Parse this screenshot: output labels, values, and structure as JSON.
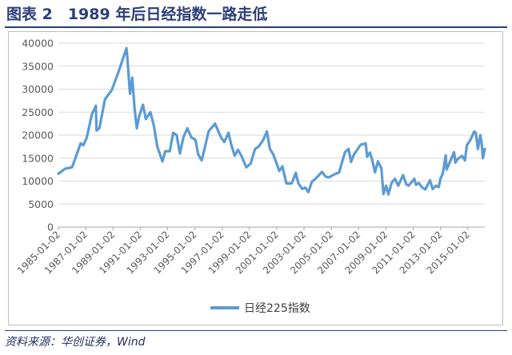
{
  "figure": {
    "title": "图表 2　1989 年后日经指数一路走低",
    "source": "资料来源：华创证券，Wind"
  },
  "colors": {
    "series": "#5b9bd5",
    "title": "#2c3e7a",
    "axis_text": "#595959",
    "grid": "#d9d9d9"
  },
  "chart_data": {
    "type": "line",
    "title": "",
    "xlabel": "",
    "ylabel": "",
    "ylim": [
      0,
      40000
    ],
    "yticks": [
      0,
      5000,
      10000,
      15000,
      20000,
      25000,
      30000,
      35000,
      40000
    ],
    "xlim": [
      "1985-01-02",
      "2016-04-01"
    ],
    "xticks": [
      "1985-01-02",
      "1987-01-02",
      "1989-01-02",
      "1991-01-02",
      "1993-01-02",
      "1995-01-02",
      "1997-01-02",
      "1999-01-02",
      "2001-01-02",
      "2003-01-02",
      "2005-01-02",
      "2007-01-02",
      "2009-01-02",
      "2011-01-02",
      "2013-01-02",
      "2015-01-02"
    ],
    "grid": "horizontal",
    "legend": "bottom",
    "series": [
      {
        "name": "日经225指数",
        "x": [
          "1985-01-02",
          "1985-07-01",
          "1986-01-02",
          "1986-04-01",
          "1986-08-20",
          "1986-11-01",
          "1987-02-01",
          "1987-06-15",
          "1987-10-01",
          "1987-10-20",
          "1988-01-04",
          "1988-06-01",
          "1988-12-01",
          "1989-06-01",
          "1989-12-29",
          "1990-01-20",
          "1990-04-02",
          "1990-06-01",
          "1990-08-01",
          "1990-10-01",
          "1990-12-01",
          "1991-03-15",
          "1991-06-01",
          "1991-10-01",
          "1992-01-02",
          "1992-04-01",
          "1992-08-18",
          "1992-11-01",
          "1993-03-01",
          "1993-06-01",
          "1993-09-01",
          "1993-11-29",
          "1994-03-01",
          "1994-06-13",
          "1994-10-01",
          "1995-01-17",
          "1995-04-01",
          "1995-07-03",
          "1995-10-01",
          "1996-01-04",
          "1996-06-26",
          "1996-12-02",
          "1997-03-01",
          "1997-06-20",
          "1997-09-01",
          "1997-12-01",
          "1998-03-01",
          "1998-06-01",
          "1998-10-09",
          "1999-02-01",
          "1999-06-01",
          "1999-09-01",
          "2000-01-04",
          "2000-04-12",
          "2000-07-03",
          "2000-10-02",
          "2001-01-04",
          "2001-03-13",
          "2001-06-01",
          "2001-09-17",
          "2002-02-06",
          "2002-05-27",
          "2002-08-01",
          "2002-11-14",
          "2003-02-03",
          "2003-04-28",
          "2003-08-01",
          "2003-11-03",
          "2004-04-26",
          "2004-08-02",
          "2004-10-25",
          "2005-04-01",
          "2005-08-01",
          "2005-10-03",
          "2006-01-04",
          "2006-04-07",
          "2006-06-14",
          "2006-09-01",
          "2007-01-04",
          "2007-02-26",
          "2007-07-09",
          "2007-08-17",
          "2007-11-01",
          "2008-01-04",
          "2008-03-17",
          "2008-06-02",
          "2008-09-01",
          "2008-10-27",
          "2009-01-05",
          "2009-03-10",
          "2009-06-01",
          "2009-08-31",
          "2009-11-27",
          "2010-04-05",
          "2010-07-01",
          "2010-09-01",
          "2011-02-01",
          "2011-03-15",
          "2011-06-01",
          "2011-09-01",
          "2011-11-25",
          "2012-03-27",
          "2012-06-04",
          "2012-09-03",
          "2012-11-14",
          "2013-01-04",
          "2013-03-01",
          "2013-05-22",
          "2013-06-13",
          "2013-09-02",
          "2013-12-30",
          "2014-02-04",
          "2014-04-01",
          "2014-08-01",
          "2014-10-17",
          "2014-12-08",
          "2015-03-02",
          "2015-06-24",
          "2015-08-03",
          "2015-09-29",
          "2015-12-01",
          "2016-01-04",
          "2016-02-12",
          "2016-03-31"
        ],
        "values": [
          11600,
          12700,
          13000,
          15000,
          18200,
          17800,
          19500,
          24500,
          26400,
          21000,
          21500,
          27800,
          29800,
          33800,
          38900,
          37000,
          29000,
          32500,
          26000,
          21500,
          24000,
          26600,
          23500,
          25000,
          22000,
          17500,
          14300,
          16500,
          16500,
          20500,
          20000,
          16000,
          19500,
          21500,
          19500,
          19000,
          15800,
          14500,
          17500,
          20800,
          22500,
          19500,
          18500,
          20500,
          18000,
          15500,
          16800,
          15500,
          13000,
          13800,
          17000,
          17500,
          18900,
          20800,
          17000,
          15800,
          13700,
          12200,
          13200,
          9500,
          9500,
          11800,
          9600,
          8300,
          8600,
          7600,
          9900,
          10500,
          12000,
          11000,
          10800,
          11500,
          11900,
          13800,
          16300,
          17000,
          14200,
          15800,
          17300,
          17900,
          18200,
          15300,
          16200,
          14500,
          11900,
          14300,
          12800,
          7200,
          9000,
          7100,
          9600,
          10500,
          9000,
          11300,
          9300,
          9000,
          10500,
          9200,
          9600,
          8600,
          8200,
          10200,
          8300,
          9000,
          8700,
          10600,
          11600,
          15600,
          12500,
          14000,
          16300,
          14000,
          14800,
          15500,
          14500,
          17800,
          18800,
          20800,
          20500,
          17000,
          20000,
          18500,
          15000,
          17000
        ]
      }
    ]
  }
}
